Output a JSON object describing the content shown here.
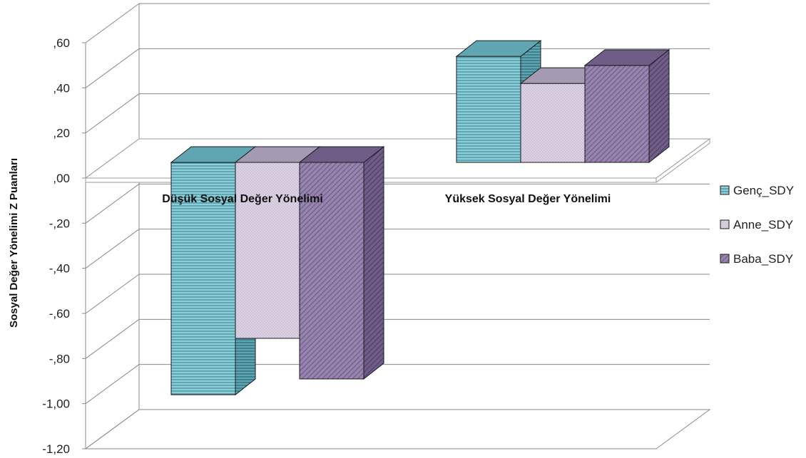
{
  "chart_data": {
    "type": "bar",
    "ylabel": "Sosyal Değer Yönelimi Z Puanları",
    "xlabel": "",
    "categories": [
      "Düşük Sosyal Değer Yönelimi",
      "Yüksek Sosyal Değer Yönelimi"
    ],
    "series": [
      {
        "name": "Genç_SDY",
        "values": [
          -1.03,
          0.47
        ],
        "color": "#8ECFD9",
        "pattern": "horizontal-lines"
      },
      {
        "name": "Anne_SDY",
        "values": [
          -0.78,
          0.35
        ],
        "color": "#D7CCDF",
        "pattern": "dots"
      },
      {
        "name": "Baba_SDY",
        "values": [
          -0.96,
          0.43
        ],
        "color": "#8F7AA8",
        "pattern": "diagonal-lines"
      }
    ],
    "ylim": [
      -1.2,
      0.6
    ],
    "yticks": [
      ",60",
      ",40",
      ",20",
      ",00",
      "-,20",
      "-,40",
      "-,60",
      "-,80",
      "-1,00",
      "-1,20"
    ],
    "ytick_values": [
      0.6,
      0.4,
      0.2,
      0.0,
      -0.2,
      -0.4,
      -0.6,
      -0.8,
      -1.0,
      -1.2
    ],
    "grid": true,
    "three_d": true,
    "legend_position": "right"
  }
}
